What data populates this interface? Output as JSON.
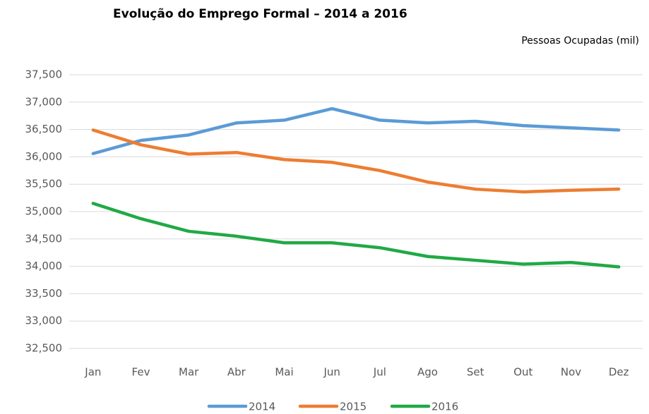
{
  "chart_data": {
    "type": "line",
    "title": "Evolução do Emprego Formal – 2014 a 2016",
    "subtitle": "Pessoas Ocupadas (mil)",
    "categories": [
      "Jan",
      "Fev",
      "Mar",
      "Abr",
      "Mai",
      "Jun",
      "Jul",
      "Ago",
      "Set",
      "Out",
      "Nov",
      "Dez"
    ],
    "series": [
      {
        "name": "2014",
        "color": "#5b9bd5",
        "values": [
          36060,
          36300,
          36400,
          36620,
          36670,
          36880,
          36670,
          36620,
          36650,
          36570,
          36530,
          36490
        ]
      },
      {
        "name": "2015",
        "color": "#ed7d31",
        "values": [
          36490,
          36220,
          36050,
          36080,
          35950,
          35900,
          35750,
          35540,
          35410,
          35360,
          35390,
          35410
        ]
      },
      {
        "name": "2016",
        "color": "#21a945",
        "values": [
          35150,
          34870,
          34640,
          34550,
          34430,
          34430,
          34340,
          34180,
          34110,
          34040,
          34070,
          33990
        ]
      }
    ],
    "ylim": [
      32500,
      37500
    ],
    "yticks": [
      {
        "value": 32500,
        "label": "32,500"
      },
      {
        "value": 33000,
        "label": "33,000"
      },
      {
        "value": 33500,
        "label": "33,500"
      },
      {
        "value": 34000,
        "label": "34,000"
      },
      {
        "value": 34500,
        "label": "34,500"
      },
      {
        "value": 35000,
        "label": "35,000"
      },
      {
        "value": 35500,
        "label": "35,500"
      },
      {
        "value": 36000,
        "label": "36,000"
      },
      {
        "value": 36500,
        "label": "36,500"
      },
      {
        "value": 37000,
        "label": "37,000"
      },
      {
        "value": 37500,
        "label": "37,500"
      }
    ],
    "grid": true,
    "legend": "bottom"
  }
}
